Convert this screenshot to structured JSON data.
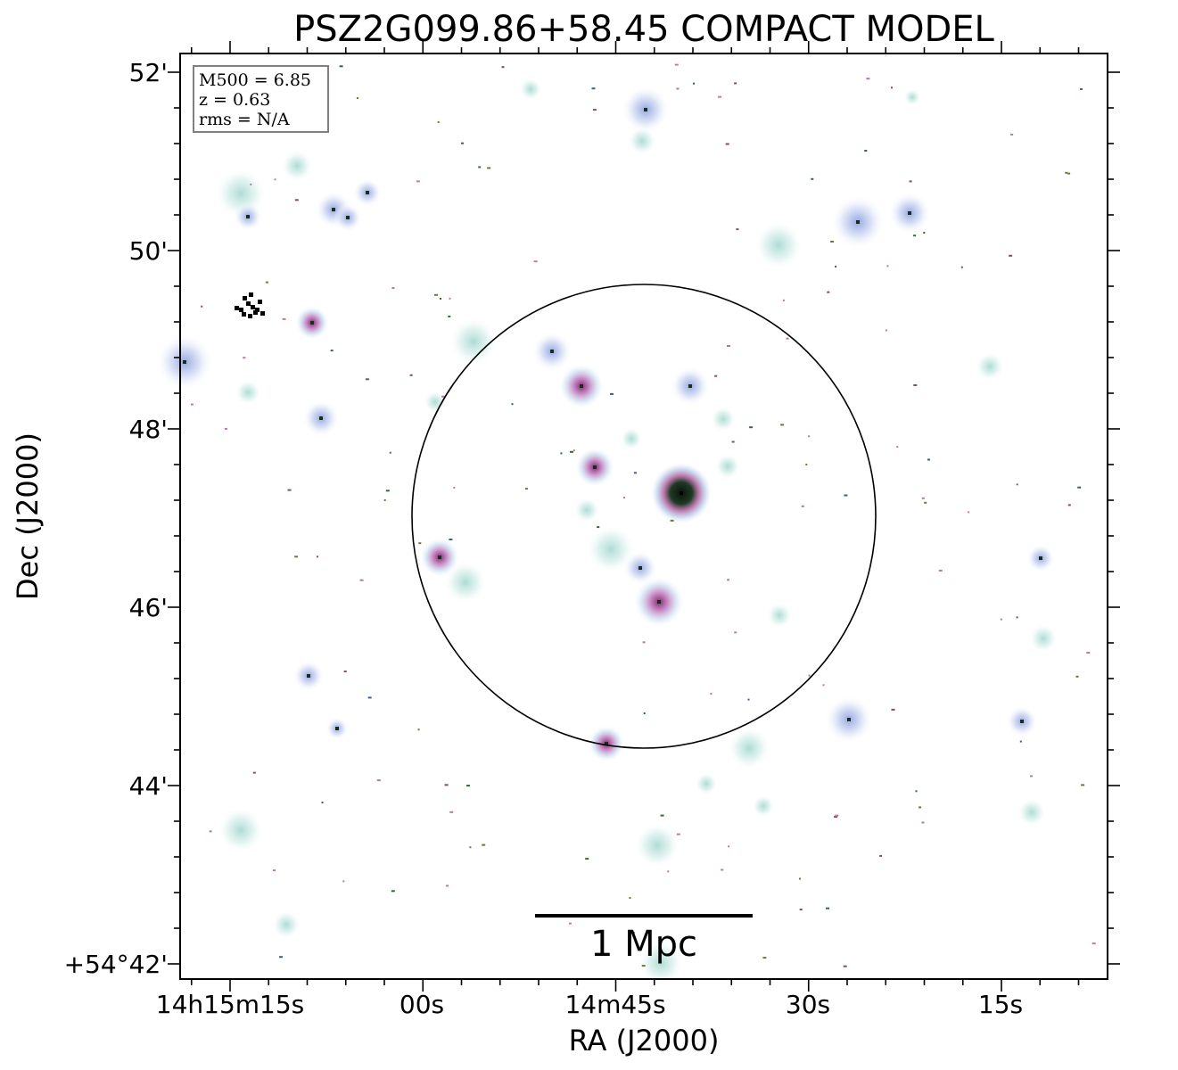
{
  "title": "PSZ2G099.86+58.45 COMPACT MODEL",
  "axes": {
    "xlabel": "RA (J2000)",
    "ylabel": "Dec (J2000)",
    "x_ticks": [
      "14h15m15s",
      "00s",
      "14m45s",
      "30s",
      "15s"
    ],
    "y_ticks": [
      "52'",
      "50'",
      "48'",
      "46'",
      "44'",
      "+54°42'"
    ]
  },
  "info_box": {
    "line1": "M500 = 6.85",
    "line2": "z = 0.63",
    "line3": "rms = N/A"
  },
  "scale_bar": {
    "label": "1 Mpc"
  },
  "colors": {
    "frame": "#000000",
    "halo_teal": "#cfe9e4",
    "halo_blue": "#c7d2ef",
    "halo_magenta": "#c98bc8",
    "core_dark": "#1a2a1a",
    "pixel_pink": "#c77a8f",
    "pixel_green": "#2f6b3a"
  }
}
